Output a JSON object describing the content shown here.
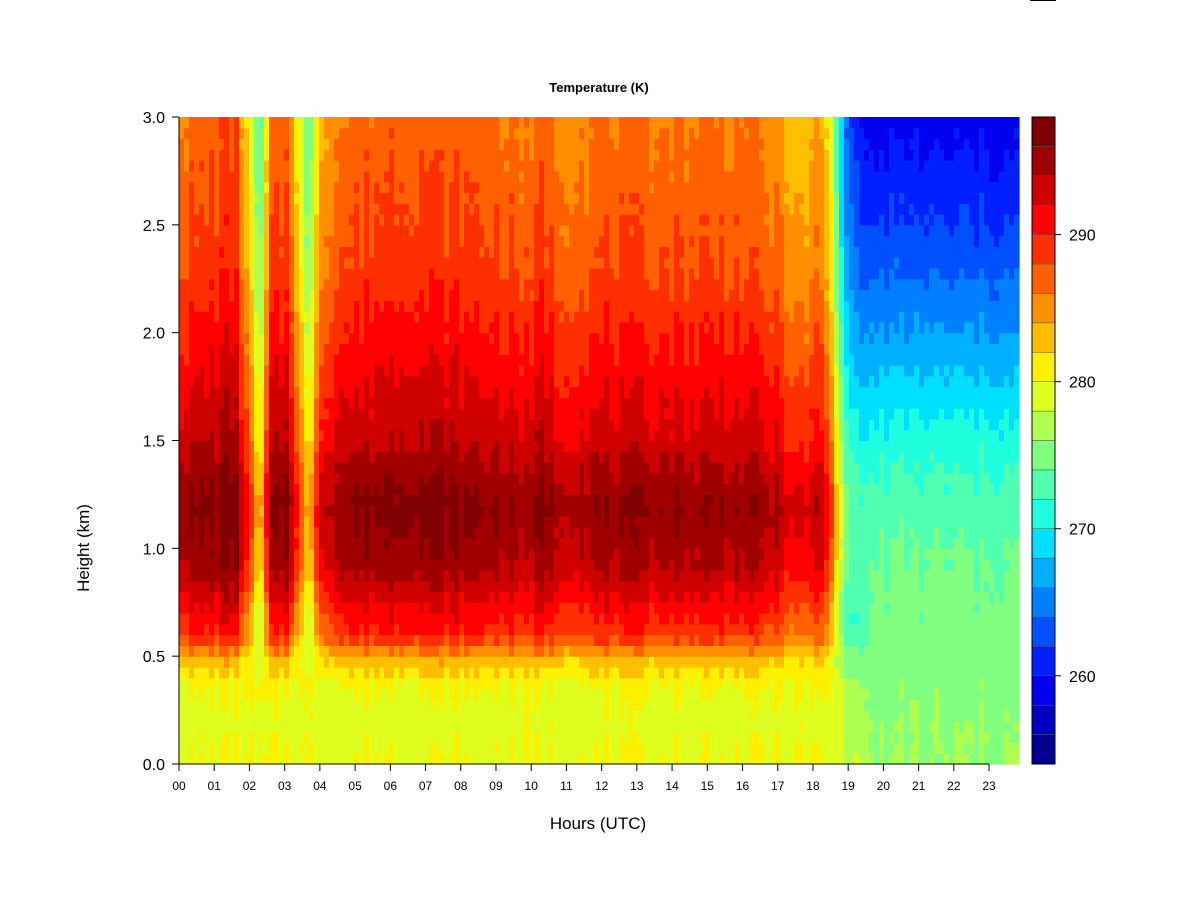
{
  "chart_data": {
    "type": "heatmap",
    "title": "Temperature (K)",
    "xlabel": "Hours (UTC)",
    "ylabel": "Height (km)",
    "xlim": [
      0,
      23.85
    ],
    "ylim": [
      0,
      3.0
    ],
    "x_ticks": [
      {
        "value": 0,
        "label": "00"
      },
      {
        "value": 1,
        "label": "01"
      },
      {
        "value": 2,
        "label": "02"
      },
      {
        "value": 3,
        "label": "03"
      },
      {
        "value": 4,
        "label": "04"
      },
      {
        "value": 5,
        "label": "05"
      },
      {
        "value": 6,
        "label": "06"
      },
      {
        "value": 7,
        "label": "07"
      },
      {
        "value": 8,
        "label": "08"
      },
      {
        "value": 9,
        "label": "09"
      },
      {
        "value": 10,
        "label": "10"
      },
      {
        "value": 11,
        "label": "11"
      },
      {
        "value": 12,
        "label": "12"
      },
      {
        "value": 13,
        "label": "13"
      },
      {
        "value": 14,
        "label": "14"
      },
      {
        "value": 15,
        "label": "15"
      },
      {
        "value": 16,
        "label": "16"
      },
      {
        "value": 17,
        "label": "17"
      },
      {
        "value": 18,
        "label": "18"
      },
      {
        "value": 19,
        "label": "19"
      },
      {
        "value": 20,
        "label": "20"
      },
      {
        "value": 21,
        "label": "21"
      },
      {
        "value": 22,
        "label": "22"
      },
      {
        "value": 23,
        "label": "23"
      }
    ],
    "y_ticks": [
      {
        "value": 0.0,
        "label": "0.0"
      },
      {
        "value": 0.5,
        "label": "0.5"
      },
      {
        "value": 1.0,
        "label": "1.0"
      },
      {
        "value": 1.5,
        "label": "1.5"
      },
      {
        "value": 2.0,
        "label": "2.0"
      },
      {
        "value": 2.5,
        "label": "2.5"
      },
      {
        "value": 3.0,
        "label": "3.0"
      }
    ],
    "colorbar": {
      "min": 254,
      "max": 298,
      "levels": 22,
      "ticks": [
        {
          "value": 260,
          "label": "260"
        },
        {
          "value": 270,
          "label": "270"
        },
        {
          "value": 280,
          "label": "280"
        },
        {
          "value": 290,
          "label": "290"
        }
      ],
      "colors": [
        "#00008f",
        "#0000bf",
        "#0000ef",
        "#0020ff",
        "#0050ff",
        "#0080ff",
        "#00b0ff",
        "#00dfff",
        "#20ffdf",
        "#50ffaf",
        "#80ff80",
        "#afff50",
        "#dfff20",
        "#ffef00",
        "#ffbf00",
        "#ff8f00",
        "#ff6000",
        "#ff3000",
        "#ff0000",
        "#cf0000",
        "#a00000",
        "#800000"
      ]
    },
    "time_profile": [
      {
        "t": 0.0,
        "anomaly": 0
      },
      {
        "t": 1.0,
        "anomaly": 1
      },
      {
        "t": 1.6,
        "anomaly": 2
      },
      {
        "t": 2.0,
        "anomaly": -6
      },
      {
        "t": 2.3,
        "anomaly": -14
      },
      {
        "t": 2.6,
        "anomaly": 0
      },
      {
        "t": 3.1,
        "anomaly": 1
      },
      {
        "t": 3.4,
        "anomaly": -6
      },
      {
        "t": 3.7,
        "anomaly": -14
      },
      {
        "t": 3.95,
        "anomaly": -3
      },
      {
        "t": 4.5,
        "anomaly": 0
      },
      {
        "t": 6.5,
        "anomaly": 1.5
      },
      {
        "t": 9.5,
        "anomaly": 0
      },
      {
        "t": 10.0,
        "anomaly": -1
      },
      {
        "t": 10.3,
        "anomaly": 1.5
      },
      {
        "t": 10.8,
        "anomaly": -1
      },
      {
        "t": 12.0,
        "anomaly": 0
      },
      {
        "t": 16.0,
        "anomaly": 0
      },
      {
        "t": 17.0,
        "anomaly": -1.5
      },
      {
        "t": 17.6,
        "anomaly": -4
      },
      {
        "t": 18.2,
        "anomaly": -2
      },
      {
        "t": 18.55,
        "anomaly": -7
      },
      {
        "t": 18.85,
        "anomaly": -17
      },
      {
        "t": 19.4,
        "anomaly": -25
      },
      {
        "t": 21.0,
        "anomaly": -28
      },
      {
        "t": 23.85,
        "anomaly": -28
      }
    ],
    "day_vertical_profile": [
      {
        "h": 0.0,
        "temp": 280
      },
      {
        "h": 0.2,
        "temp": 279
      },
      {
        "h": 0.35,
        "temp": 280
      },
      {
        "h": 0.48,
        "temp": 283
      },
      {
        "h": 0.6,
        "temp": 289
      },
      {
        "h": 0.9,
        "temp": 294
      },
      {
        "h": 1.2,
        "temp": 296
      },
      {
        "h": 1.5,
        "temp": 293
      },
      {
        "h": 1.9,
        "temp": 290.5
      },
      {
        "h": 2.3,
        "temp": 288
      },
      {
        "h": 2.7,
        "temp": 287
      },
      {
        "h": 3.0,
        "temp": 286
      }
    ],
    "night_vertical_profile": [
      {
        "h": 0.0,
        "temp": 276
      },
      {
        "h": 0.5,
        "temp": 275
      },
      {
        "h": 1.0,
        "temp": 274
      },
      {
        "h": 1.5,
        "temp": 271
      },
      {
        "h": 2.0,
        "temp": 266
      },
      {
        "h": 2.5,
        "temp": 262
      },
      {
        "h": 3.0,
        "temp": 259
      }
    ]
  }
}
